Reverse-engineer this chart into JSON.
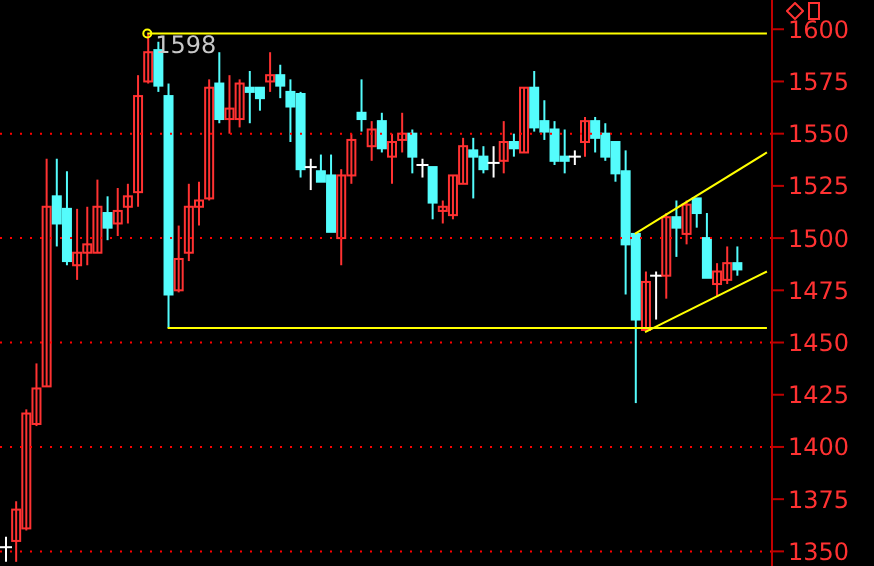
{
  "chart_data": {
    "type": "candlestick",
    "categories": [
      null,
      null,
      null,
      null,
      null,
      null,
      null,
      null,
      null,
      null,
      null,
      null,
      null,
      null,
      null,
      null,
      null,
      null,
      null,
      null,
      null,
      null,
      null,
      null,
      null,
      null,
      null,
      null,
      null,
      null,
      null,
      null,
      null,
      null,
      null,
      null,
      null,
      null,
      null,
      null,
      null,
      null,
      null,
      null,
      null,
      null,
      null,
      null,
      null,
      null,
      null,
      null,
      null,
      null,
      null,
      null,
      null,
      null,
      null,
      null,
      null,
      null,
      null,
      null,
      null,
      null,
      null,
      null,
      null,
      null,
      null,
      null,
      null,
      null,
      null,
      null
    ],
    "ohlc": [
      [
        1352,
        1357,
        1345,
        1352
      ],
      [
        1355,
        1374,
        1345,
        1370
      ],
      [
        1361,
        1418,
        1360,
        1416
      ],
      [
        1411,
        1440,
        1410,
        1428
      ],
      [
        1429,
        1538,
        1429,
        1515
      ],
      [
        1520,
        1538,
        1496,
        1507
      ],
      [
        1514,
        1532,
        1487,
        1489
      ],
      [
        1487,
        1514,
        1480,
        1493
      ],
      [
        1493,
        1515,
        1487,
        1497
      ],
      [
        1493,
        1528,
        1493,
        1515
      ],
      [
        1512,
        1520,
        1499,
        1505
      ],
      [
        1507,
        1524,
        1501,
        1513
      ],
      [
        1515,
        1526,
        1507,
        1520
      ],
      [
        1522,
        1578,
        1515,
        1568
      ],
      [
        1575,
        1598,
        1574,
        1589
      ],
      [
        1590,
        1594,
        1570,
        1573
      ],
      [
        1568,
        1574,
        1457,
        1473
      ],
      [
        1475,
        1506,
        1474,
        1490
      ],
      [
        1493,
        1526,
        1489,
        1515
      ],
      [
        1515,
        1527,
        1506,
        1518
      ],
      [
        1519,
        1576,
        1518,
        1572
      ],
      [
        1574,
        1589,
        1555,
        1557
      ],
      [
        1557,
        1578,
        1550,
        1562
      ],
      [
        1557,
        1576,
        1553,
        1574
      ],
      [
        1572,
        1580,
        1555,
        1570
      ],
      [
        1572,
        1572,
        1561,
        1567
      ],
      [
        1575,
        1589,
        1570,
        1578
      ],
      [
        1578,
        1583,
        1567,
        1573
      ],
      [
        1570,
        1576,
        1546,
        1563
      ],
      [
        1569,
        1570,
        1529,
        1533
      ],
      [
        1534,
        1538,
        1523,
        1534
      ],
      [
        1532,
        1540,
        1527,
        1527
      ],
      [
        1530,
        1540,
        1503,
        1503
      ],
      [
        1500,
        1533,
        1487,
        1530
      ],
      [
        1530,
        1550,
        1526,
        1547
      ],
      [
        1560,
        1576,
        1551,
        1557
      ],
      [
        1544,
        1556,
        1537,
        1552
      ],
      [
        1556,
        1560,
        1541,
        1543
      ],
      [
        1539,
        1550,
        1526,
        1546
      ],
      [
        1547,
        1560,
        1541,
        1550
      ],
      [
        1550,
        1552,
        1531,
        1539
      ],
      [
        1535,
        1538,
        1529,
        1535
      ],
      [
        1534,
        1534,
        1509,
        1517
      ],
      [
        1513,
        1518,
        1507,
        1515
      ],
      [
        1511,
        1530,
        1509,
        1530
      ],
      [
        1526,
        1548,
        1526,
        1544
      ],
      [
        1542,
        1548,
        1519,
        1539
      ],
      [
        1539,
        1544,
        1531,
        1533
      ],
      [
        1536,
        1544,
        1529,
        1536
      ],
      [
        1537,
        1556,
        1531,
        1546
      ],
      [
        1546,
        1550,
        1539,
        1543
      ],
      [
        1541,
        1572,
        1541,
        1572
      ],
      [
        1572,
        1580,
        1551,
        1553
      ],
      [
        1556,
        1566,
        1547,
        1551
      ],
      [
        1552,
        1556,
        1535,
        1537
      ],
      [
        1539,
        1552,
        1531,
        1537
      ],
      [
        1539,
        1542,
        1535,
        1539
      ],
      [
        1546,
        1558,
        1539,
        1556
      ],
      [
        1556,
        1558,
        1541,
        1548
      ],
      [
        1550,
        1555,
        1537,
        1539
      ],
      [
        1546,
        1546,
        1527,
        1531
      ],
      [
        1532,
        1542,
        1473,
        1497
      ],
      [
        1502,
        1502,
        1421,
        1461
      ],
      [
        1456,
        1484,
        1456,
        1479
      ],
      [
        1482,
        1484,
        1461,
        1482
      ],
      [
        1482,
        1512,
        1471,
        1510
      ],
      [
        1510,
        1518,
        1491,
        1505
      ],
      [
        1502,
        1518,
        1497,
        1516
      ],
      [
        1519,
        1519,
        1505,
        1512
      ],
      [
        1500,
        1512,
        1481,
        1481
      ],
      [
        1478,
        1488,
        1472,
        1484
      ],
      [
        1480,
        1496,
        1478,
        1488
      ],
      [
        1488,
        1496,
        1482,
        1485
      ],
      null,
      null,
      null
    ],
    "colors": [
      "#ffffff",
      "#ff3232",
      "#ff3232",
      "#ff3232",
      "#ff3232",
      "#54fcfc",
      "#54fcfc",
      "#ff3232",
      "#ff3232",
      "#ff3232",
      "#54fcfc",
      "#ff3232",
      "#ff3232",
      "#ff3232",
      "#ff3232",
      "#54fcfc",
      "#54fcfc",
      "#ff3232",
      "#ff3232",
      "#ff3232",
      "#ff3232",
      "#54fcfc",
      "#ff3232",
      "#ff3232",
      "#54fcfc",
      "#54fcfc",
      "#ff3232",
      "#54fcfc",
      "#54fcfc",
      "#54fcfc",
      "#ffffff",
      "#54fcfc",
      "#54fcfc",
      "#ff3232",
      "#ff3232",
      "#54fcfc",
      "#ff3232",
      "#54fcfc",
      "#ff3232",
      "#ff3232",
      "#54fcfc",
      "#ffffff",
      "#54fcfc",
      "#ff3232",
      "#ff3232",
      "#ff3232",
      "#54fcfc",
      "#54fcfc",
      "#ffffff",
      "#ff3232",
      "#54fcfc",
      "#ff3232",
      "#54fcfc",
      "#54fcfc",
      "#54fcfc",
      "#54fcfc",
      "#ffffff",
      "#ff3232",
      "#54fcfc",
      "#54fcfc",
      "#54fcfc",
      "#54fcfc",
      "#54fcfc",
      "#ff3232",
      "#ffffff",
      "#ff3232",
      "#54fcfc",
      "#ff3232",
      "#54fcfc",
      "#54fcfc",
      "#ff3232",
      "#ff3232",
      "#54fcfc",
      null,
      null,
      null
    ],
    "series": [
      {
        "type": "line",
        "color": "#ffff00",
        "values": [
          null,
          null,
          null,
          null,
          null,
          null,
          null,
          null,
          null,
          null,
          null,
          null,
          null,
          null,
          1598,
          null,
          null,
          null,
          null,
          null,
          null,
          null,
          null,
          null,
          null,
          null,
          null,
          null,
          null,
          null,
          null,
          null,
          null,
          null,
          null,
          null,
          null,
          null,
          null,
          null,
          null,
          null,
          null,
          null,
          null,
          null,
          null,
          null,
          null,
          null,
          null,
          null,
          null,
          null,
          null,
          null,
          null,
          null,
          null,
          null,
          null,
          null,
          null,
          null,
          null,
          null,
          null,
          null,
          null,
          null,
          null,
          null,
          null,
          null,
          null,
          1598
        ]
      },
      {
        "type": "line",
        "color": "#ffff00",
        "values": [
          null,
          null,
          null,
          null,
          null,
          null,
          null,
          null,
          null,
          null,
          null,
          null,
          null,
          null,
          null,
          null,
          1457,
          null,
          null,
          null,
          null,
          null,
          null,
          null,
          null,
          null,
          null,
          null,
          null,
          null,
          null,
          null,
          null,
          null,
          null,
          null,
          null,
          null,
          null,
          null,
          null,
          null,
          null,
          null,
          null,
          null,
          null,
          null,
          null,
          null,
          null,
          null,
          null,
          null,
          null,
          null,
          null,
          null,
          null,
          null,
          null,
          null,
          null,
          null,
          null,
          null,
          null,
          null,
          null,
          null,
          null,
          null,
          null,
          null,
          null,
          1457
        ]
      },
      {
        "type": "line",
        "color": "#ffff00",
        "values": [
          null,
          null,
          null,
          null,
          null,
          null,
          null,
          null,
          null,
          null,
          null,
          null,
          null,
          null,
          null,
          null,
          null,
          null,
          null,
          null,
          null,
          null,
          null,
          null,
          null,
          null,
          null,
          null,
          null,
          null,
          null,
          null,
          null,
          null,
          null,
          null,
          null,
          null,
          null,
          null,
          null,
          null,
          null,
          null,
          null,
          null,
          null,
          null,
          null,
          null,
          null,
          null,
          null,
          null,
          null,
          null,
          null,
          null,
          null,
          null,
          null,
          null,
          1502,
          null,
          null,
          null,
          null,
          null,
          null,
          null,
          null,
          null,
          null,
          null,
          null,
          1541
        ]
      },
      {
        "type": "line",
        "color": "#ffff00",
        "values": [
          null,
          null,
          null,
          null,
          null,
          null,
          null,
          null,
          null,
          null,
          null,
          null,
          null,
          null,
          null,
          null,
          null,
          null,
          null,
          null,
          null,
          null,
          null,
          null,
          null,
          null,
          null,
          null,
          null,
          null,
          null,
          null,
          null,
          null,
          null,
          null,
          null,
          null,
          null,
          null,
          null,
          null,
          null,
          null,
          null,
          null,
          null,
          null,
          null,
          null,
          null,
          null,
          null,
          null,
          null,
          null,
          null,
          null,
          null,
          null,
          null,
          null,
          null,
          1455,
          null,
          null,
          null,
          null,
          null,
          null,
          null,
          null,
          null,
          null,
          null,
          1484
        ]
      }
    ],
    "ylim": [
      1343,
      1614
    ],
    "yticks": [
      1350,
      1375,
      1400,
      1425,
      1450,
      1475,
      1500,
      1525,
      1550,
      1575,
      1600
    ],
    "ref_lines": [
      {
        "axis": "y",
        "value": 1350,
        "color": "#ff0000",
        "line_style": "dotted"
      },
      {
        "axis": "y",
        "value": 1400,
        "color": "#ff0000",
        "line_style": "dotted"
      },
      {
        "axis": "y",
        "value": 1450,
        "color": "#ff0000",
        "line_style": "dotted"
      },
      {
        "axis": "y",
        "value": 1500,
        "color": "#ff0000",
        "line_style": "dotted"
      },
      {
        "axis": "y",
        "value": 1550,
        "color": "#ff0000",
        "line_style": "dotted"
      }
    ],
    "annotations": [
      "1598"
    ],
    "tick_labels": "y"
  }
}
